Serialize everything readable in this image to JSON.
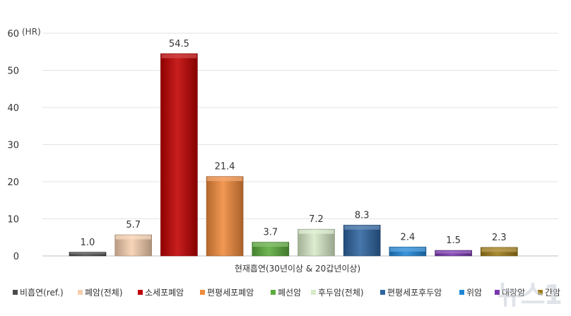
{
  "chart_data": {
    "type": "bar",
    "unit_label": "(HR)",
    "xlabel": "현재흡연(30년이상 & 20갑년이상)",
    "ylim": [
      0,
      60
    ],
    "yticks": [
      0,
      10,
      20,
      30,
      40,
      50,
      60
    ],
    "grid": true,
    "legend_position": "bottom",
    "categories": [
      "비흡연(ref.)",
      "폐암(전체)",
      "소세포폐암",
      "편평세포폐암",
      "폐선암",
      "후두암(전체)",
      "편평세포후두암",
      "위암",
      "대장암",
      "간암"
    ],
    "values": [
      1.0,
      5.7,
      54.5,
      21.4,
      3.7,
      7.2,
      8.3,
      2.4,
      1.5,
      2.3
    ],
    "value_labels": [
      "1.0",
      "5.7",
      "54.5",
      "21.4",
      "3.7",
      "7.2",
      "8.3",
      "2.4",
      "1.5",
      "2.3"
    ],
    "colors": [
      "#4a4a4a",
      "#f6cfae",
      "#c00000",
      "#f08a3c",
      "#5cac3c",
      "#d8ebc8",
      "#2e64a0",
      "#1f86d6",
      "#7a38b0",
      "#a07c18"
    ]
  },
  "watermark": "뉴스1"
}
